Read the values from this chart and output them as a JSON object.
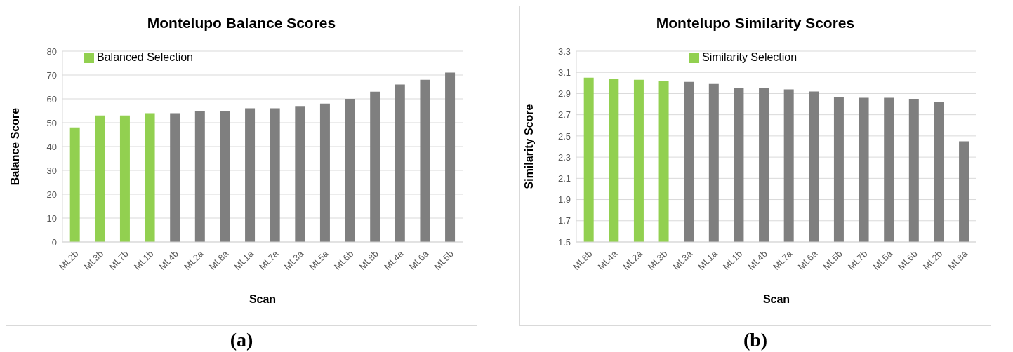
{
  "chart_data": [
    {
      "type": "bar",
      "title": "Montelupo Balance Scores",
      "xlabel": "Scan",
      "ylabel": "Balance Score",
      "categories": [
        "ML2b",
        "ML3b",
        "ML7b",
        "ML1b",
        "ML4b",
        "ML2a",
        "ML8a",
        "ML1a",
        "ML7a",
        "ML3a",
        "ML5a",
        "ML6b",
        "ML8b",
        "ML4a",
        "ML6a",
        "ML5b"
      ],
      "series": [
        {
          "name": "Balanced Selection",
          "color": "#92d050",
          "values": [
            48,
            53,
            53,
            54,
            null,
            null,
            null,
            null,
            null,
            null,
            null,
            null,
            null,
            null,
            null,
            null
          ]
        },
        {
          "color": "#7f7f7f",
          "values": [
            null,
            null,
            null,
            null,
            54,
            55,
            55,
            56,
            56,
            57,
            58,
            60,
            63,
            66,
            68,
            71
          ]
        }
      ],
      "stacked": true,
      "ylim": [
        0,
        80
      ],
      "yticks": [
        0,
        10,
        20,
        30,
        40,
        50,
        60,
        70,
        80
      ],
      "grid": "y",
      "legend": "top left",
      "annotations": [
        "(a)"
      ]
    },
    {
      "type": "bar",
      "title": "Montelupo Similarity Scores",
      "xlabel": "Scan",
      "ylabel": "Similarity Score",
      "categories": [
        "ML8b",
        "ML4a",
        "ML2a",
        "ML3b",
        "ML3a",
        "ML1a",
        "ML1b",
        "ML4b",
        "ML7a",
        "ML6a",
        "ML5b",
        "ML7b",
        "ML5a",
        "ML6b",
        "ML2b",
        "ML8a"
      ],
      "series": [
        {
          "name": "Similarity Selection",
          "color": "#92d050",
          "values": [
            3.05,
            3.04,
            3.03,
            3.02,
            null,
            null,
            null,
            null,
            null,
            null,
            null,
            null,
            null,
            null,
            null,
            null
          ]
        },
        {
          "color": "#7f7f7f",
          "values": [
            null,
            null,
            null,
            null,
            3.01,
            2.99,
            2.95,
            2.95,
            2.94,
            2.92,
            2.87,
            2.86,
            2.86,
            2.85,
            2.82,
            2.45
          ]
        }
      ],
      "stacked": true,
      "ylim": [
        1.5,
        3.3
      ],
      "yticks": [
        1.5,
        1.7,
        1.9,
        2.1,
        2.3,
        2.5,
        2.7,
        2.9,
        3.1,
        3.3
      ],
      "grid": "y",
      "legend": "top",
      "annotations": [
        "(b)"
      ]
    }
  ]
}
